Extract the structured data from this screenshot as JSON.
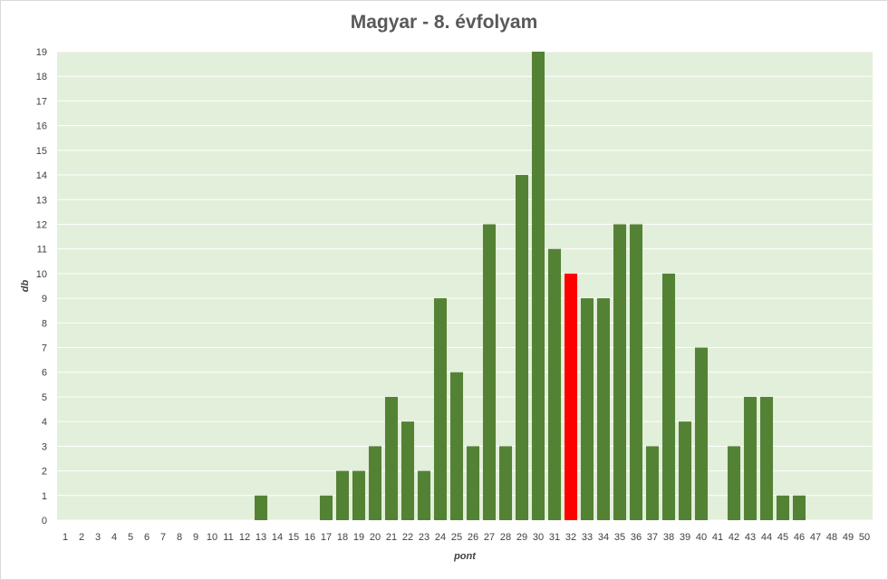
{
  "chart_data": {
    "type": "bar",
    "title": "Magyar - 8. évfolyam",
    "xlabel": "pont",
    "ylabel": "db",
    "ylim": [
      0,
      19
    ],
    "yticks": [
      0,
      1,
      2,
      3,
      4,
      5,
      6,
      7,
      8,
      9,
      10,
      11,
      12,
      13,
      14,
      15,
      16,
      17,
      18,
      19
    ],
    "grid": true,
    "legend": "none",
    "categories": [
      "1",
      "2",
      "3",
      "4",
      "5",
      "6",
      "7",
      "8",
      "9",
      "10",
      "11",
      "12",
      "13",
      "14",
      "15",
      "16",
      "17",
      "18",
      "19",
      "20",
      "21",
      "22",
      "23",
      "24",
      "25",
      "26",
      "27",
      "28",
      "29",
      "30",
      "31",
      "32",
      "33",
      "34",
      "35",
      "36",
      "37",
      "38",
      "39",
      "40",
      "41",
      "42",
      "43",
      "44",
      "45",
      "46",
      "47",
      "48",
      "49",
      "50"
    ],
    "values": [
      0,
      0,
      0,
      0,
      0,
      0,
      0,
      0,
      0,
      0,
      0,
      0,
      1,
      0,
      0,
      0,
      1,
      2,
      2,
      3,
      5,
      4,
      2,
      9,
      6,
      3,
      12,
      3,
      14,
      19,
      11,
      10,
      9,
      9,
      12,
      12,
      3,
      10,
      4,
      7,
      0,
      3,
      5,
      5,
      1,
      1,
      0,
      0,
      0,
      0
    ],
    "highlight_category": "32"
  },
  "colors": {
    "bar": "#548235",
    "highlight": "#ff0000",
    "plot_background": "#e2efda",
    "gridline": "#ffffff",
    "text": "#404040",
    "title": "#595959"
  }
}
